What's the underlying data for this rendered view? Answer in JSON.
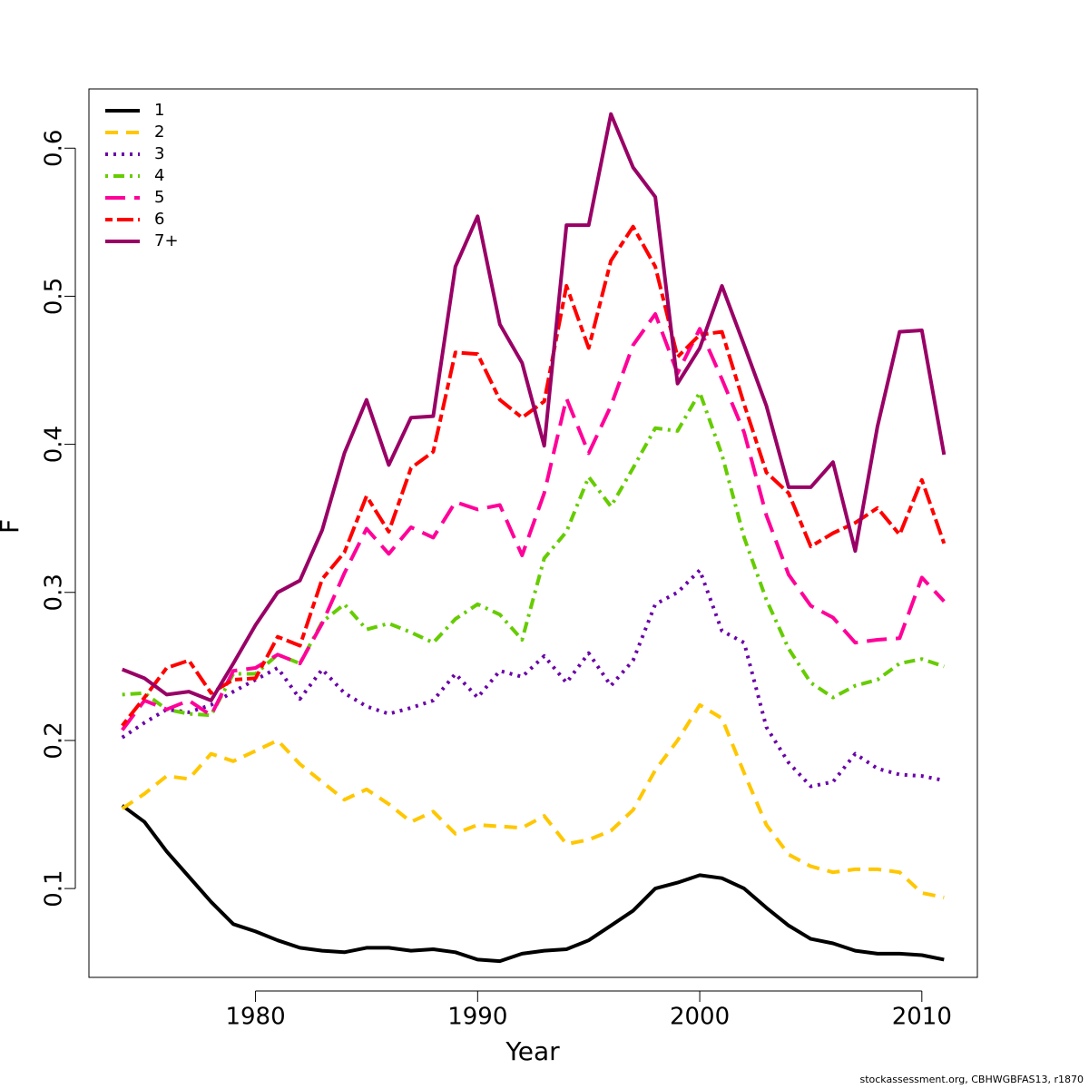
{
  "chart_data": {
    "type": "line",
    "title": "",
    "xlabel": "Year",
    "ylabel": "F",
    "xlim": [
      1972.5,
      2012.5
    ],
    "ylim": [
      0.04,
      0.64
    ],
    "x_ticks": [
      1980,
      1990,
      2000,
      2010
    ],
    "y_ticks": [
      0.1,
      0.2,
      0.3,
      0.4,
      0.5,
      0.6
    ],
    "grid": false,
    "legend_position": "top-left",
    "x": [
      1974,
      1975,
      1976,
      1977,
      1978,
      1979,
      1980,
      1981,
      1982,
      1983,
      1984,
      1985,
      1986,
      1987,
      1988,
      1989,
      1990,
      1991,
      1992,
      1993,
      1994,
      1995,
      1996,
      1997,
      1998,
      1999,
      2000,
      2001,
      2002,
      2003,
      2004,
      2005,
      2006,
      2007,
      2008,
      2009,
      2010,
      2011
    ],
    "series": [
      {
        "name": "1",
        "color": "#000000",
        "dash": "solid",
        "values": [
          0.156,
          0.145,
          0.125,
          0.108,
          0.091,
          0.076,
          0.071,
          0.065,
          0.06,
          0.058,
          0.057,
          0.06,
          0.06,
          0.058,
          0.059,
          0.057,
          0.052,
          0.051,
          0.056,
          0.058,
          0.059,
          0.065,
          0.075,
          0.085,
          0.1,
          0.104,
          0.109,
          0.107,
          0.1,
          0.087,
          0.075,
          0.066,
          0.063,
          0.058,
          0.056,
          0.056,
          0.055,
          0.052
        ]
      },
      {
        "name": "2",
        "color": "#FFC700",
        "dash": "dashed",
        "values": [
          0.154,
          0.164,
          0.176,
          0.174,
          0.191,
          0.186,
          0.193,
          0.2,
          0.184,
          0.172,
          0.16,
          0.167,
          0.157,
          0.145,
          0.152,
          0.137,
          0.143,
          0.142,
          0.141,
          0.149,
          0.13,
          0.133,
          0.139,
          0.153,
          0.18,
          0.2,
          0.224,
          0.215,
          0.178,
          0.143,
          0.123,
          0.115,
          0.111,
          0.113,
          0.113,
          0.111,
          0.097,
          0.094
        ]
      },
      {
        "name": "3",
        "color": "#6A00A8",
        "dash": "dotted",
        "values": [
          0.202,
          0.212,
          0.221,
          0.219,
          0.224,
          0.233,
          0.241,
          0.249,
          0.228,
          0.248,
          0.232,
          0.223,
          0.218,
          0.222,
          0.227,
          0.245,
          0.229,
          0.247,
          0.243,
          0.257,
          0.239,
          0.259,
          0.237,
          0.254,
          0.292,
          0.3,
          0.315,
          0.274,
          0.266,
          0.209,
          0.185,
          0.169,
          0.172,
          0.191,
          0.181,
          0.177,
          0.176,
          0.173
        ]
      },
      {
        "name": "4",
        "color": "#66CC00",
        "dash": "dashdot",
        "values": [
          0.231,
          0.232,
          0.221,
          0.218,
          0.217,
          0.245,
          0.245,
          0.258,
          0.252,
          0.28,
          0.292,
          0.275,
          0.279,
          0.273,
          0.266,
          0.282,
          0.292,
          0.285,
          0.268,
          0.323,
          0.341,
          0.378,
          0.358,
          0.384,
          0.411,
          0.409,
          0.435,
          0.393,
          0.337,
          0.295,
          0.262,
          0.239,
          0.229,
          0.237,
          0.241,
          0.252,
          0.255,
          0.25
        ]
      },
      {
        "name": "5",
        "color": "#FF0099",
        "dash": "longdash",
        "values": [
          0.207,
          0.227,
          0.221,
          0.227,
          0.217,
          0.247,
          0.249,
          0.258,
          0.252,
          0.279,
          0.313,
          0.343,
          0.326,
          0.344,
          0.337,
          0.361,
          0.356,
          0.359,
          0.325,
          0.367,
          0.431,
          0.394,
          0.426,
          0.467,
          0.488,
          0.448,
          0.478,
          0.444,
          0.408,
          0.352,
          0.312,
          0.291,
          0.283,
          0.266,
          0.268,
          0.269,
          0.31,
          0.294
        ]
      },
      {
        "name": "6",
        "color": "#FF0000",
        "dash": "twodash",
        "values": [
          0.21,
          0.229,
          0.249,
          0.254,
          0.232,
          0.241,
          0.242,
          0.27,
          0.264,
          0.309,
          0.327,
          0.365,
          0.341,
          0.384,
          0.395,
          0.462,
          0.461,
          0.43,
          0.418,
          0.429,
          0.507,
          0.465,
          0.524,
          0.547,
          0.52,
          0.459,
          0.474,
          0.476,
          0.427,
          0.381,
          0.367,
          0.331,
          0.34,
          0.347,
          0.357,
          0.339,
          0.376,
          0.333
        ]
      },
      {
        "name": "7+",
        "color": "#990066",
        "dash": "solid",
        "values": [
          0.248,
          0.242,
          0.231,
          0.233,
          0.227,
          0.252,
          0.278,
          0.3,
          0.308,
          0.342,
          0.394,
          0.43,
          0.386,
          0.418,
          0.419,
          0.52,
          0.554,
          0.481,
          0.455,
          0.399,
          0.548,
          0.548,
          0.623,
          0.587,
          0.567,
          0.441,
          0.465,
          0.507,
          0.467,
          0.426,
          0.371,
          0.371,
          0.388,
          0.328,
          0.412,
          0.476,
          0.477,
          0.393
        ]
      }
    ]
  },
  "credit": "stockassessment.org, CBHWGBFAS13, r1870"
}
